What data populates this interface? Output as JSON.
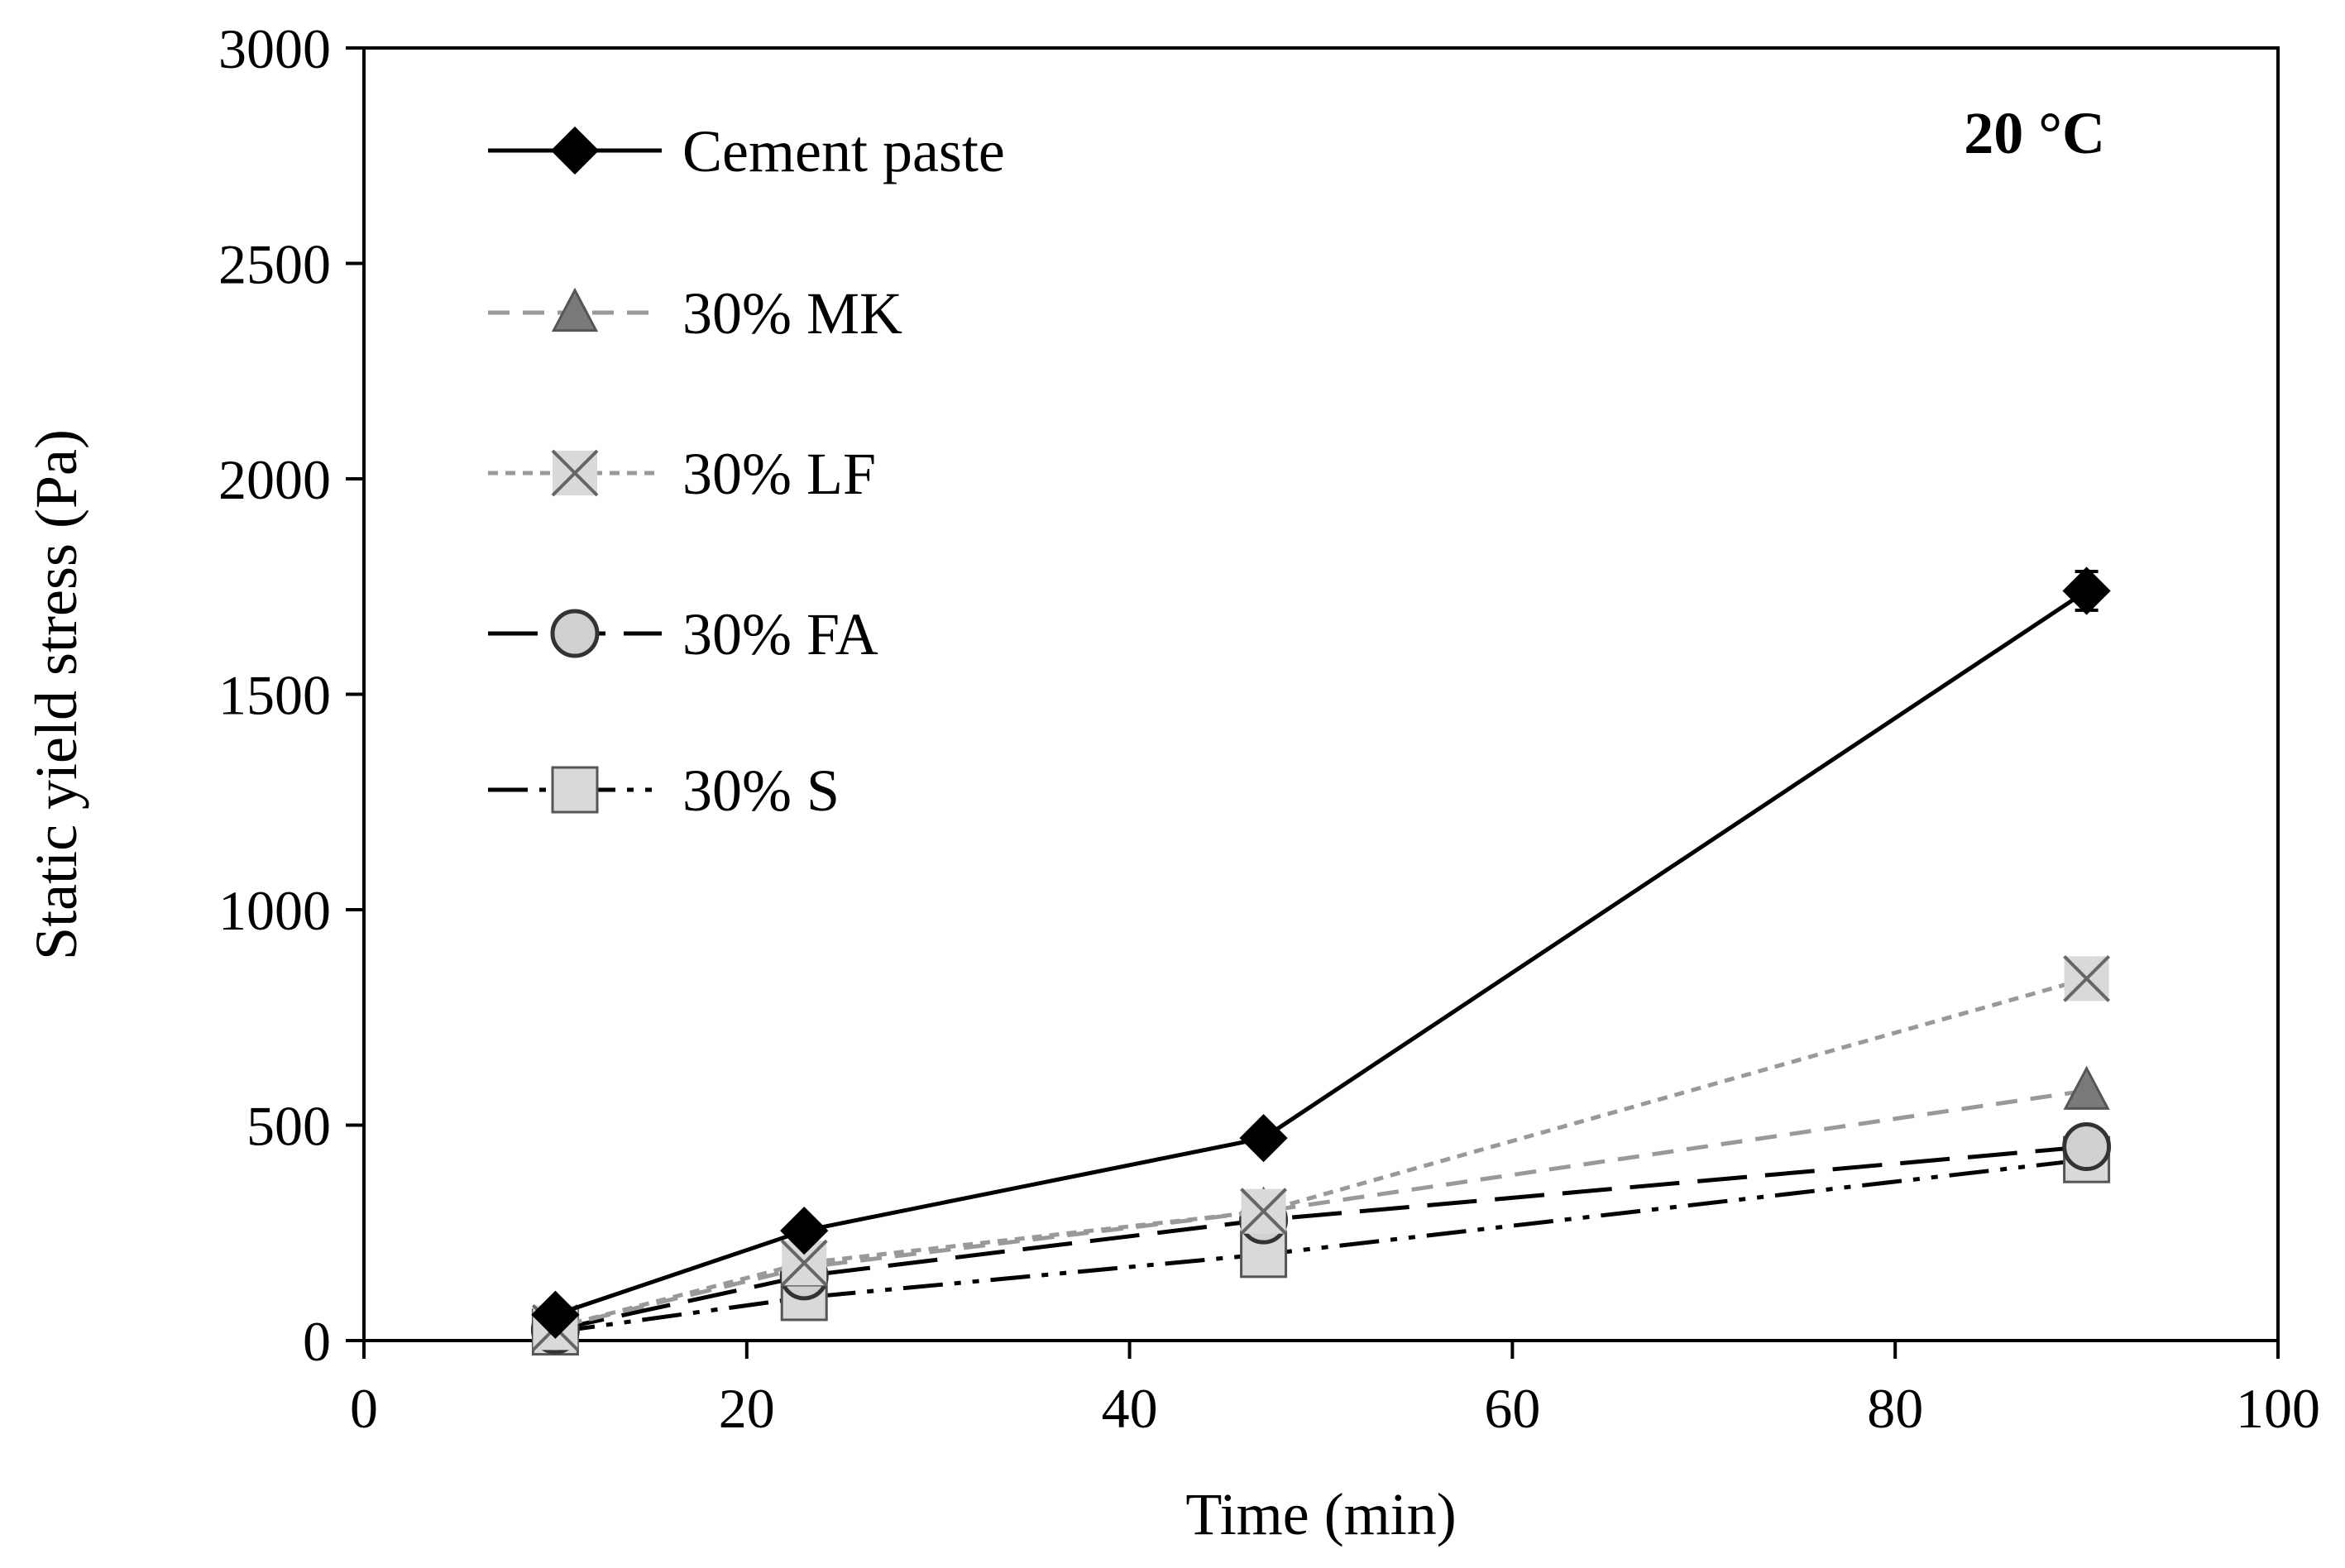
{
  "chart_data": {
    "type": "line",
    "title": "",
    "annotation": "20 °C",
    "xlabel": "Time (min)",
    "ylabel": "Static yield stress (Pa)",
    "xlim": [
      0,
      100
    ],
    "ylim": [
      0,
      3000
    ],
    "x_ticks": [
      0,
      20,
      40,
      60,
      80,
      100
    ],
    "y_ticks": [
      0,
      500,
      1000,
      1500,
      2000,
      2500,
      3000
    ],
    "x_tick_labels": [
      "0",
      "20",
      "40",
      "60",
      "80",
      "100"
    ],
    "y_tick_labels": [
      "0",
      "500",
      "1000",
      "1500",
      "2000",
      "2500",
      "3000"
    ],
    "grid": false,
    "legend_position": "top-left",
    "series": [
      {
        "key": "cement",
        "name": "Cement paste",
        "x": [
          10,
          23,
          47,
          90
        ],
        "values": [
          60,
          255,
          470,
          1740
        ],
        "error": [
          null,
          null,
          null,
          45
        ],
        "marker": "diamond",
        "line_color": "#000000",
        "marker_fill": "#000000",
        "marker_stroke": "#000000",
        "dash": "solid"
      },
      {
        "key": "mk",
        "name": "30% MK",
        "x": [
          10,
          23,
          47,
          90
        ],
        "values": [
          30,
          170,
          300,
          580
        ],
        "error": [
          null,
          null,
          null,
          null
        ],
        "marker": "triangle",
        "line_color": "#999999",
        "marker_fill": "#7a7a7a",
        "marker_stroke": "#555555",
        "dash": "dashed"
      },
      {
        "key": "lf",
        "name": "30% LF",
        "x": [
          10,
          23,
          47,
          90
        ],
        "values": [
          30,
          180,
          300,
          840
        ],
        "error": [
          null,
          null,
          null,
          null
        ],
        "marker": "cross",
        "line_color": "#999999",
        "marker_fill": "#d9d9d9",
        "marker_stroke": "#666666",
        "dash": "dotted"
      },
      {
        "key": "fa",
        "name": "30% FA",
        "x": [
          10,
          23,
          47,
          90
        ],
        "values": [
          25,
          150,
          280,
          450
        ],
        "error": [
          null,
          null,
          null,
          null
        ],
        "marker": "circle",
        "line_color": "#000000",
        "marker_fill": "#d0d0d0",
        "marker_stroke": "#333333",
        "dash": "longdash"
      },
      {
        "key": "s",
        "name": "30% S",
        "x": [
          10,
          23,
          47,
          90
        ],
        "values": [
          20,
          100,
          200,
          420
        ],
        "error": [
          null,
          null,
          null,
          null
        ],
        "marker": "square",
        "line_color": "#000000",
        "marker_fill": "#d9d9d9",
        "marker_stroke": "#555555",
        "dash": "dashdotdot"
      }
    ]
  }
}
